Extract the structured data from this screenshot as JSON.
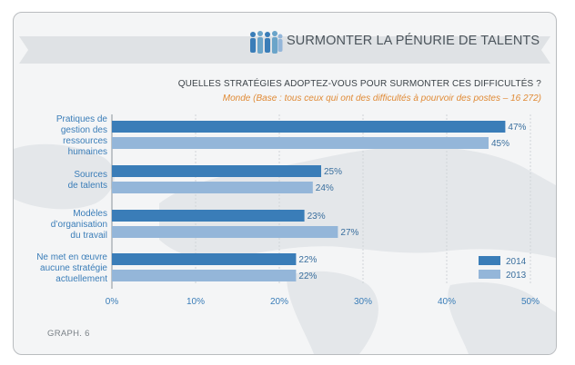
{
  "header": {
    "title": "SURMONTER LA PÉNURIE DE TALENTS",
    "icon": "people-group-icon"
  },
  "question": "QUELLES STRATÉGIES ADOPTEZ-VOUS POUR SURMONTER CES DIFFICULTÉS ?",
  "subtitle": "Monde (Base : tous ceux qui ont des difficultés à pourvoir des postes – 16 272)",
  "footer": "GRAPH. 6",
  "colors": {
    "series_2014": "#3a7db8",
    "series_2013": "#94b6d9",
    "banner": "#dfe2e5",
    "subtitle": "#e08a35"
  },
  "chart_data": {
    "type": "bar",
    "orientation": "horizontal",
    "categories": [
      [
        "Pratiques de",
        "gestion des",
        "ressources",
        "humaines"
      ],
      [
        "Sources",
        "de talents"
      ],
      [
        "Modèles",
        "d’organisation",
        "du travail"
      ],
      [
        "Ne met en œuvre",
        "aucune stratégie",
        "actuellement"
      ]
    ],
    "series": [
      {
        "name": "2014",
        "values": [
          47,
          25,
          23,
          22
        ],
        "labels": [
          "47%",
          "25%",
          "23%",
          "22%"
        ]
      },
      {
        "name": "2013",
        "values": [
          45,
          24,
          27,
          22
        ],
        "labels": [
          "45%",
          "24%",
          "27%",
          "22%"
        ]
      }
    ],
    "xlim": [
      0,
      50
    ],
    "xticks": [
      "0%",
      "10%",
      "20%",
      "30%",
      "40%",
      "50%"
    ],
    "legend": "bottom-right",
    "grid": true
  }
}
